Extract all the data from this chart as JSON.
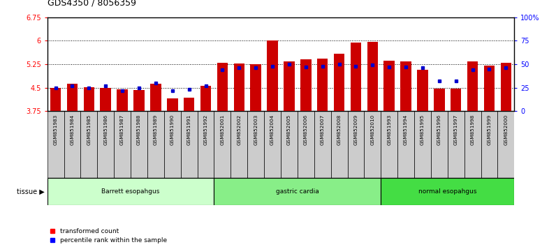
{
  "title": "GDS4350 / 8056359",
  "samples": [
    "GSM851983",
    "GSM851984",
    "GSM851985",
    "GSM851986",
    "GSM851987",
    "GSM851988",
    "GSM851989",
    "GSM851990",
    "GSM851991",
    "GSM851992",
    "GSM852001",
    "GSM852002",
    "GSM852003",
    "GSM852004",
    "GSM852005",
    "GSM852006",
    "GSM852007",
    "GSM852008",
    "GSM852009",
    "GSM852010",
    "GSM851993",
    "GSM851994",
    "GSM851995",
    "GSM851996",
    "GSM851997",
    "GSM851998",
    "GSM851999",
    "GSM852000"
  ],
  "transformed_counts": [
    4.5,
    4.62,
    4.51,
    4.5,
    4.44,
    4.42,
    4.63,
    4.15,
    4.17,
    4.57,
    5.3,
    5.28,
    5.24,
    6.02,
    5.35,
    5.4,
    5.42,
    5.58,
    5.95,
    5.97,
    5.36,
    5.35,
    5.07,
    4.47,
    4.47,
    5.35,
    5.2,
    5.3
  ],
  "percentile_ranks": [
    25,
    27,
    25,
    27,
    22,
    25,
    30,
    22,
    23,
    27,
    44,
    46,
    46,
    48,
    50,
    47,
    48,
    50,
    48,
    49,
    47,
    47,
    46,
    32,
    32,
    44,
    45,
    46
  ],
  "groups": [
    {
      "label": "Barrett esopahgus",
      "start": 0,
      "end": 10,
      "color": "#ccffcc"
    },
    {
      "label": "gastric cardia",
      "start": 10,
      "end": 20,
      "color": "#88ee88"
    },
    {
      "label": "normal esopahgus",
      "start": 20,
      "end": 28,
      "color": "#44dd44"
    }
  ],
  "ymin": 3.75,
  "ymax": 6.75,
  "yticks_left": [
    3.75,
    4.5,
    5.25,
    6.0,
    6.75
  ],
  "ytick_left_labels": [
    "3.75",
    "4.5",
    "5.25",
    "6",
    "6.75"
  ],
  "yticks_right": [
    0,
    25,
    50,
    75,
    100
  ],
  "ytick_right_labels": [
    "0",
    "25",
    "50",
    "75",
    "100%"
  ],
  "grid_lines": [
    4.5,
    5.25,
    6.0
  ],
  "bar_color": "#cc0000",
  "dot_color": "#0000cc",
  "bar_width": 0.65,
  "title_fontsize": 9,
  "tick_fontsize": 7,
  "sample_fontsize": 5.2,
  "tissue_fontsize": 6.5,
  "legend_fontsize": 6.5,
  "xtick_box_color": "#cccccc",
  "figure_width": 7.96,
  "figure_height": 3.54,
  "figure_dpi": 100
}
